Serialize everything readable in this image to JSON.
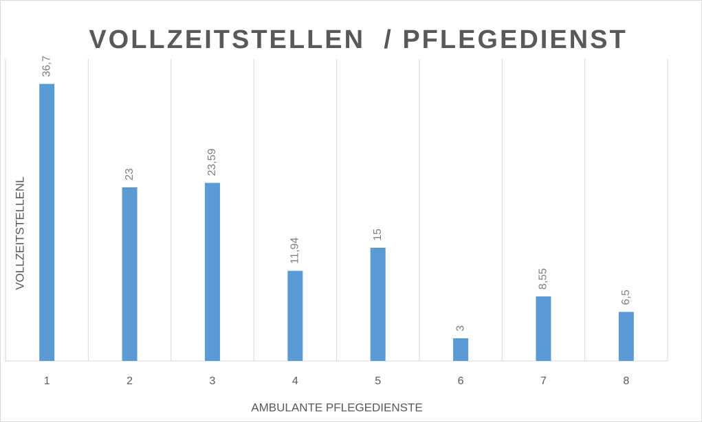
{
  "chart_data": {
    "type": "bar",
    "title": "VOLLZEITSTELLEN  / PFLEGEDIENST",
    "x_label": "AMBULANTE PFLEGEDIENSTE",
    "y_label": "VOLLZEITSTELLENL",
    "categories": [
      "1",
      "2",
      "3",
      "4",
      "5",
      "6",
      "7",
      "8"
    ],
    "values": [
      36.7,
      23,
      23.59,
      11.94,
      15,
      3,
      8.55,
      6.5
    ],
    "value_labels": [
      "36,7",
      "23",
      "23,59",
      "11,94",
      "15",
      "3",
      "8,55",
      "6,5"
    ],
    "color": "#5b9bd5",
    "ylim": [
      0,
      40
    ],
    "grid": true
  }
}
